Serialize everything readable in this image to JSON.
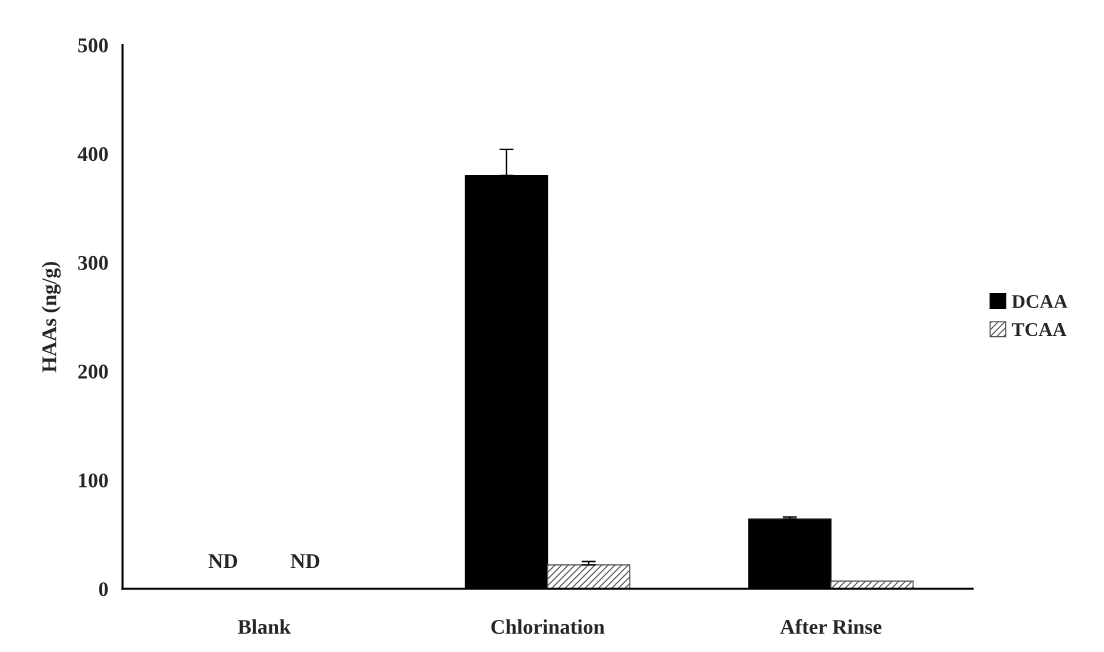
{
  "chart_data": {
    "type": "bar",
    "ylabel": "HAAs (ng/g)",
    "categories": [
      "Blank",
      "Chlorination",
      "After Rinse"
    ],
    "series": [
      {
        "name": "DCAA",
        "color": "#000000",
        "values": [
          null,
          380,
          64
        ],
        "errors": [
          null,
          24,
          2
        ],
        "value_labels": [
          "ND",
          null,
          null
        ]
      },
      {
        "name": "TCAA",
        "color": "#555555",
        "values": [
          null,
          22,
          7
        ],
        "errors": [
          null,
          3,
          null
        ],
        "value_labels": [
          "ND",
          null,
          null
        ]
      }
    ],
    "ylim": [
      0,
      500
    ],
    "yticks": [
      0,
      100,
      200,
      300,
      400,
      500
    ],
    "grid": false,
    "legend": "right"
  }
}
